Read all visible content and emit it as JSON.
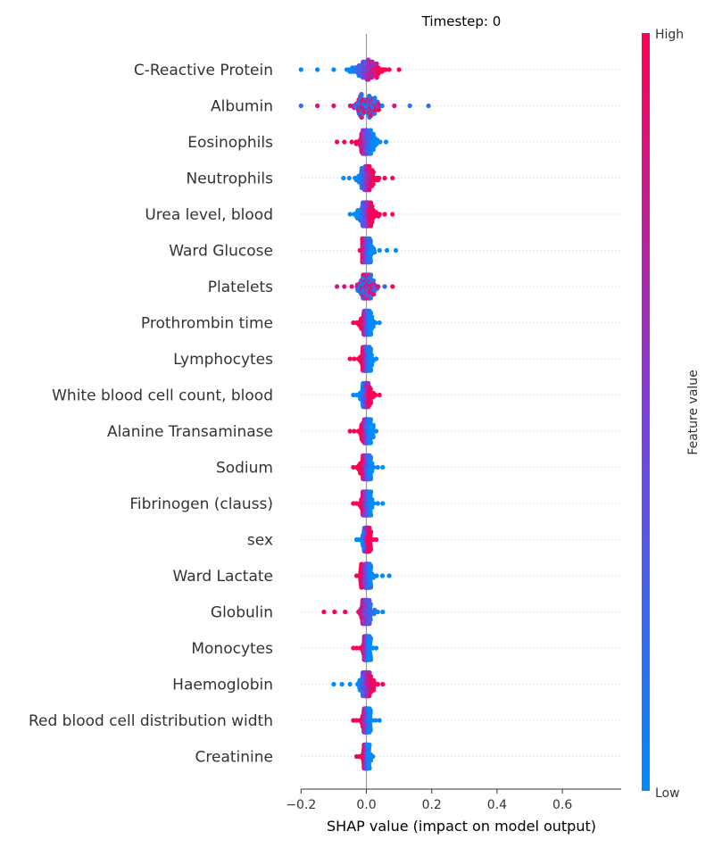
{
  "chart_data": {
    "type": "scatter",
    "subtype": "shap-beeswarm",
    "title": "Timestep: 0",
    "xlabel": "SHAP value (impact on model output)",
    "ylabel": "",
    "xlim": [
      -0.22,
      0.78
    ],
    "x_ticks": [
      -0.2,
      0.0,
      0.2,
      0.4,
      0.6
    ],
    "x_tick_labels": [
      "−0.2",
      "0.0",
      "0.2",
      "0.4",
      "0.6"
    ],
    "grid": false,
    "colorbar": {
      "label": "Feature value",
      "high": "High",
      "low": "Low",
      "colors": [
        "#008afb",
        "#7d3fdc",
        "#ff0052"
      ]
    },
    "features": [
      {
        "name": "C-Reactive Protein",
        "range": [
          -0.2,
          0.1
        ],
        "high_side": "pos",
        "spread": 0.045
      },
      {
        "name": "Albumin",
        "range": [
          -0.2,
          0.19
        ],
        "high_side": "mixed",
        "spread": 0.045
      },
      {
        "name": "Eosinophils",
        "range": [
          -0.09,
          0.06
        ],
        "high_side": "neg",
        "spread": 0.03
      },
      {
        "name": "Neutrophils",
        "range": [
          -0.07,
          0.08
        ],
        "high_side": "pos",
        "spread": 0.03
      },
      {
        "name": "Urea level, blood",
        "range": [
          -0.05,
          0.08
        ],
        "high_side": "pos",
        "spread": 0.03
      },
      {
        "name": "Ward Glucose",
        "range": [
          -0.02,
          0.09
        ],
        "high_side": "neg",
        "spread": 0.025
      },
      {
        "name": "Platelets",
        "range": [
          -0.09,
          0.08
        ],
        "high_side": "mixed",
        "spread": 0.03
      },
      {
        "name": "Prothrombin time",
        "range": [
          -0.04,
          0.04
        ],
        "high_side": "neg",
        "spread": 0.02
      },
      {
        "name": "Lymphocytes",
        "range": [
          -0.05,
          0.03
        ],
        "high_side": "neg",
        "spread": 0.02
      },
      {
        "name": "White blood cell count, blood",
        "range": [
          -0.04,
          0.04
        ],
        "high_side": "pos",
        "spread": 0.02
      },
      {
        "name": "Alanine Transaminase",
        "range": [
          -0.05,
          0.03
        ],
        "high_side": "neg",
        "spread": 0.02
      },
      {
        "name": "Sodium",
        "range": [
          -0.04,
          0.05
        ],
        "high_side": "neg",
        "spread": 0.02
      },
      {
        "name": "Fibrinogen (clauss)",
        "range": [
          -0.04,
          0.05
        ],
        "high_side": "neg",
        "spread": 0.02
      },
      {
        "name": "sex",
        "range": [
          -0.03,
          0.03
        ],
        "high_side": "pos",
        "spread": 0.015
      },
      {
        "name": "Ward Lactate",
        "range": [
          -0.03,
          0.07
        ],
        "high_side": "neg",
        "spread": 0.02
      },
      {
        "name": "Globulin",
        "range": [
          -0.13,
          0.05
        ],
        "high_side": "neg",
        "spread": 0.02
      },
      {
        "name": "Monocytes",
        "range": [
          -0.04,
          0.03
        ],
        "high_side": "neg",
        "spread": 0.015
      },
      {
        "name": "Haemoglobin",
        "range": [
          -0.1,
          0.05
        ],
        "high_side": "pos",
        "spread": 0.025
      },
      {
        "name": "Red blood cell distribution width",
        "range": [
          -0.04,
          0.04
        ],
        "high_side": "neg",
        "spread": 0.015
      },
      {
        "name": "Creatinine",
        "range": [
          -0.03,
          0.02
        ],
        "high_side": "neg",
        "spread": 0.012
      }
    ]
  }
}
